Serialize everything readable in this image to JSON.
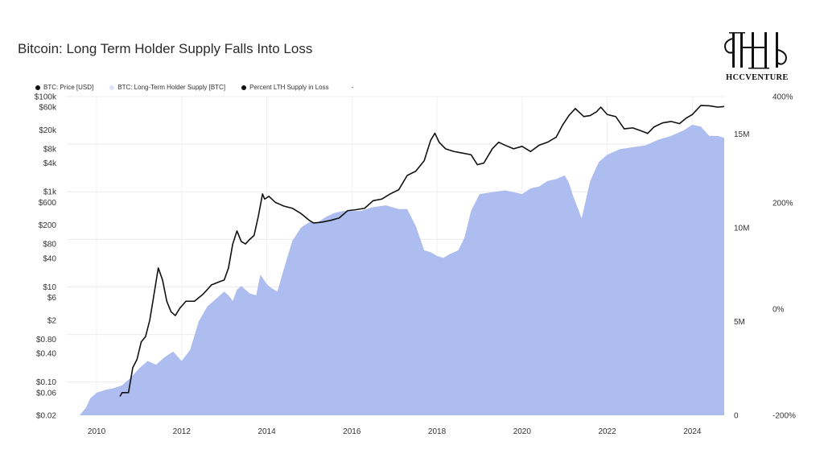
{
  "chart_data": {
    "type": "line",
    "title": "Bitcoin: Long Term Holder Supply Falls Into Loss",
    "logo_text": "HCCVENTURE",
    "legend": [
      {
        "label": "BTC: Price [USD]",
        "color": "#111111"
      },
      {
        "label": "BTC: Long-Term Holder Supply [BTC]",
        "color": "#dfe3f7"
      },
      {
        "label": "Percent LTH Supply in Loss",
        "color": "#111111"
      },
      {
        "label": "-",
        "color": ""
      }
    ],
    "x_ticks": [
      "2010",
      "2012",
      "2014",
      "2016",
      "2018",
      "2020",
      "2022",
      "2024"
    ],
    "y_left_ticks": [
      "$100k",
      "$60k",
      "$20k",
      "$8k",
      "$4k",
      "$1k",
      "$600",
      "$200",
      "$80",
      "$40",
      "$10",
      "$6",
      "$2",
      "$0.80",
      "$0.40",
      "$0.10",
      "$0.06",
      "$0.02"
    ],
    "y_left_scale": "log",
    "y_left_range": [
      0.02,
      100000
    ],
    "y_mid_ticks": [
      "15M",
      "10M",
      "5M",
      "0"
    ],
    "y_mid_range": [
      0,
      17000000
    ],
    "y_right_ticks": [
      "400%",
      "200%",
      "0%",
      "-200%"
    ],
    "y_right_range": [
      -200,
      400
    ],
    "grid": true,
    "x_range": [
      2009.3,
      2024.75
    ],
    "series": [
      {
        "name": "BTC: Price [USD]",
        "axis": "left",
        "color": "#111111",
        "x": [
          2010.55,
          2010.6,
          2010.75,
          2010.85,
          2010.95,
          2011.05,
          2011.15,
          2011.25,
          2011.35,
          2011.45,
          2011.55,
          2011.65,
          2011.75,
          2011.85,
          2011.95,
          2012.1,
          2012.3,
          2012.5,
          2012.7,
          2012.9,
          2013.0,
          2013.1,
          2013.2,
          2013.3,
          2013.4,
          2013.5,
          2013.6,
          2013.7,
          2013.8,
          2013.9,
          2013.95,
          2014.05,
          2014.2,
          2014.4,
          2014.6,
          2014.8,
          2015.0,
          2015.1,
          2015.3,
          2015.5,
          2015.7,
          2015.9,
          2016.1,
          2016.3,
          2016.5,
          2016.7,
          2016.9,
          2017.1,
          2017.3,
          2017.5,
          2017.7,
          2017.85,
          2017.95,
          2018.05,
          2018.2,
          2018.4,
          2018.6,
          2018.8,
          2018.95,
          2019.1,
          2019.3,
          2019.45,
          2019.6,
          2019.8,
          2020.0,
          2020.2,
          2020.4,
          2020.6,
          2020.8,
          2020.95,
          2021.1,
          2021.25,
          2021.45,
          2021.6,
          2021.75,
          2021.85,
          2022.0,
          2022.2,
          2022.4,
          2022.6,
          2022.8,
          2022.95,
          2023.1,
          2023.3,
          2023.5,
          2023.7,
          2023.85,
          2024.0,
          2024.2,
          2024.4,
          2024.6,
          2024.75
        ],
        "y": [
          0.05,
          0.06,
          0.06,
          0.2,
          0.3,
          0.7,
          0.9,
          2,
          7,
          25,
          14,
          5,
          3,
          2.5,
          3.5,
          5,
          5,
          7,
          11,
          13,
          14,
          25,
          80,
          150,
          90,
          80,
          100,
          120,
          300,
          900,
          700,
          800,
          600,
          500,
          450,
          350,
          250,
          220,
          230,
          250,
          280,
          400,
          420,
          450,
          650,
          700,
          900,
          1100,
          2200,
          2700,
          4500,
          12000,
          17000,
          11000,
          8000,
          7000,
          6500,
          6000,
          3700,
          4000,
          8000,
          11000,
          9500,
          8000,
          9000,
          7000,
          9500,
          11000,
          14000,
          25000,
          40000,
          56000,
          38000,
          40000,
          48000,
          60000,
          42000,
          38000,
          21000,
          22000,
          19000,
          16800,
          23000,
          28000,
          30000,
          27000,
          35000,
          42000,
          65000,
          64000,
          60000,
          62000
        ]
      },
      {
        "name": "BTC: Long-Term Holder Supply [BTC]",
        "axis": "mid",
        "color": "#a9b9ee",
        "x": [
          2009.3,
          2009.6,
          2009.75,
          2009.85,
          2010.0,
          2010.2,
          2010.4,
          2010.6,
          2010.8,
          2011.0,
          2011.2,
          2011.4,
          2011.6,
          2011.8,
          2012.0,
          2012.2,
          2012.4,
          2012.6,
          2012.8,
          2013.0,
          2013.1,
          2013.2,
          2013.3,
          2013.4,
          2013.6,
          2013.75,
          2013.85,
          2014.0,
          2014.1,
          2014.25,
          2014.4,
          2014.6,
          2014.8,
          2015.0,
          2015.2,
          2015.4,
          2015.6,
          2015.8,
          2016.0,
          2016.2,
          2016.5,
          2016.8,
          2017.1,
          2017.3,
          2017.5,
          2017.7,
          2017.85,
          2018.0,
          2018.15,
          2018.3,
          2018.5,
          2018.65,
          2018.8,
          2019.0,
          2019.3,
          2019.6,
          2019.8,
          2020.0,
          2020.2,
          2020.4,
          2020.6,
          2020.8,
          2021.0,
          2021.1,
          2021.2,
          2021.4,
          2021.6,
          2021.8,
          2022.0,
          2022.3,
          2022.6,
          2022.9,
          2023.2,
          2023.5,
          2023.8,
          2024.0,
          2024.2,
          2024.4,
          2024.6,
          2024.75
        ],
        "y": [
          0,
          0,
          400000,
          900000,
          1200000,
          1350000,
          1450000,
          1600000,
          2000000,
          2500000,
          2900000,
          2700000,
          3100000,
          3400000,
          2900000,
          3500000,
          5000000,
          5800000,
          6200000,
          6600000,
          6400000,
          6100000,
          6700000,
          6900000,
          6500000,
          6400000,
          7500000,
          7000000,
          6800000,
          6600000,
          7800000,
          9300000,
          10000000,
          10300000,
          10300000,
          10600000,
          10800000,
          10900000,
          10900000,
          10900000,
          11100000,
          11200000,
          11000000,
          11000000,
          10100000,
          8800000,
          8700000,
          8500000,
          8400000,
          8600000,
          8800000,
          9500000,
          10900000,
          11800000,
          11900000,
          12000000,
          11900000,
          11800000,
          12100000,
          12200000,
          12500000,
          12600000,
          12800000,
          12400000,
          11700000,
          10500000,
          12500000,
          13500000,
          13900000,
          14200000,
          14300000,
          14400000,
          14700000,
          14900000,
          15200000,
          15500000,
          15400000,
          14900000,
          14900000,
          14800000
        ]
      }
    ]
  }
}
